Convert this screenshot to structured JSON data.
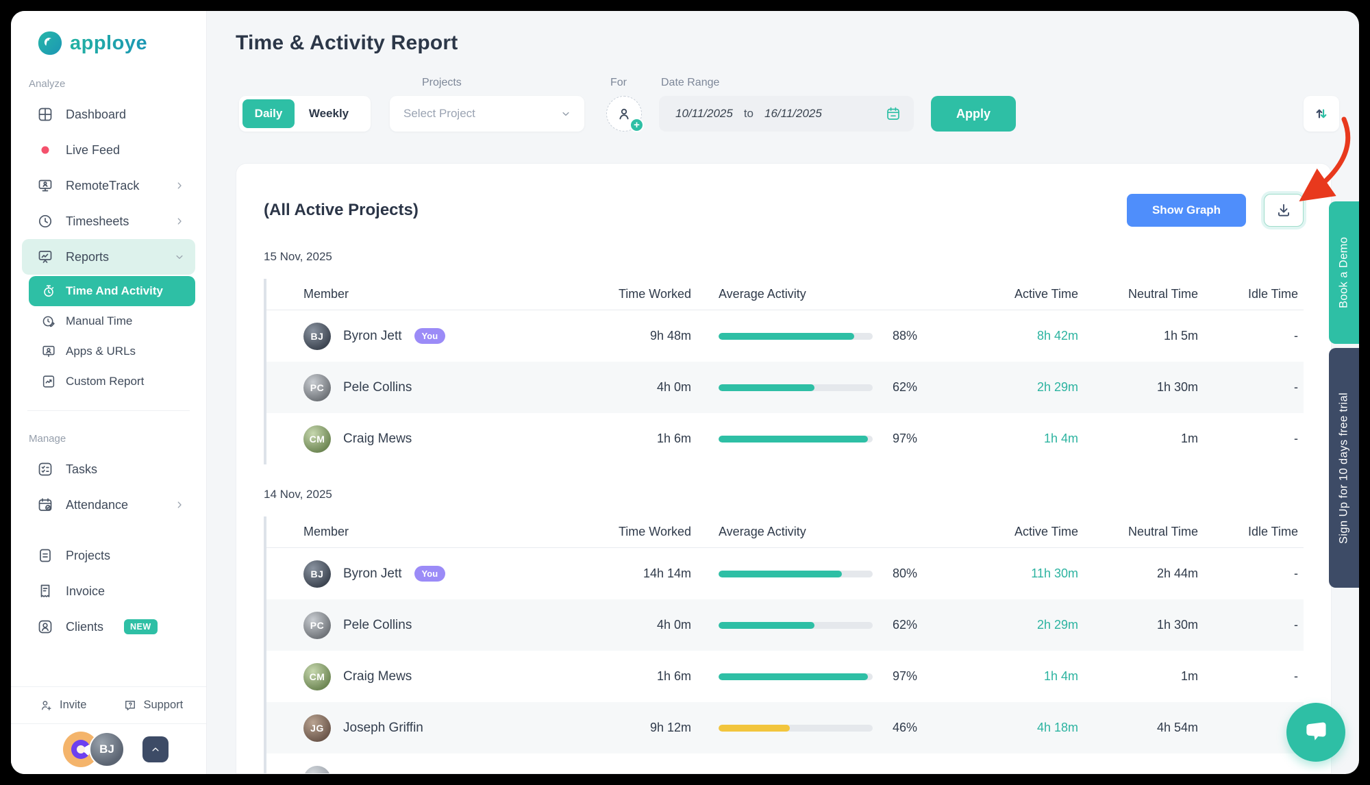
{
  "colors": {
    "teal": "#2ebfa5",
    "blue": "#4f8efb",
    "yellow": "#f2c53d",
    "purple": "#9b8bf7",
    "navy_tab": "#3d4b66",
    "red_arrow": "#e8391d",
    "live_dot": "#f4516c"
  },
  "sidebar": {
    "logo_text": "apploye",
    "analyze_label": "Analyze",
    "manage_label": "Manage",
    "analyze_items": [
      {
        "label": "Dashboard",
        "icon": "dashboard"
      },
      {
        "label": "Live Feed",
        "icon": "live"
      },
      {
        "label": "RemoteTrack",
        "icon": "remotetrack",
        "chevron": "right"
      },
      {
        "label": "Timesheets",
        "icon": "timesheets",
        "chevron": "right"
      },
      {
        "label": "Reports",
        "icon": "reports",
        "chevron": "down",
        "highlight": true
      }
    ],
    "reports_subitems": [
      {
        "label": "Time And Activity",
        "icon": "stopwatch",
        "active": true
      },
      {
        "label": "Manual Time",
        "icon": "manualtime"
      },
      {
        "label": "Apps & URLs",
        "icon": "apps"
      },
      {
        "label": "Custom Report",
        "icon": "customreport"
      }
    ],
    "manage_items": [
      {
        "label": "Tasks",
        "icon": "tasks"
      },
      {
        "label": "Attendance",
        "icon": "attendance",
        "chevron": "right"
      },
      {
        "label": "Projects",
        "icon": "projects",
        "gap_before": true
      },
      {
        "label": "Invoice",
        "icon": "invoice"
      },
      {
        "label": "Clients",
        "icon": "clients",
        "badge": "NEW"
      }
    ],
    "footer": {
      "invite": "Invite",
      "support": "Support"
    }
  },
  "header": {
    "title": "Time & Activity Report",
    "toggle": {
      "daily": "Daily",
      "weekly": "Weekly",
      "active": "Daily"
    },
    "projects_label": "Projects",
    "project_placeholder": "Select Project",
    "for_label": "For",
    "date_range_label": "Date Range",
    "date_from": "10/11/2025",
    "date_to_word": "to",
    "date_to": "16/11/2025",
    "apply_label": "Apply"
  },
  "report": {
    "scope_title": "(All Active Projects)",
    "show_graph_label": "Show Graph",
    "you_badge": "You",
    "columns": [
      "Member",
      "Time Worked",
      "Average Activity",
      "Active Time",
      "Neutral Time",
      "Idle Time"
    ],
    "groups": [
      {
        "date": "15 Nov, 2025",
        "rows": [
          {
            "name": "Byron Jett",
            "you": true,
            "time_worked": "9h 48m",
            "activity_pct": 88,
            "bar": "teal",
            "active_time": "8h 42m",
            "neutral_time": "1h 5m",
            "idle_time": "-"
          },
          {
            "name": "Pele Collins",
            "time_worked": "4h 0m",
            "activity_pct": 62,
            "bar": "teal",
            "active_time": "2h 29m",
            "neutral_time": "1h 30m",
            "idle_time": "-"
          },
          {
            "name": "Craig Mews",
            "time_worked": "1h 6m",
            "activity_pct": 97,
            "bar": "teal",
            "active_time": "1h 4m",
            "neutral_time": "1m",
            "idle_time": "-"
          }
        ],
        "partial_next_row": false
      },
      {
        "date": "14 Nov, 2025",
        "rows": [
          {
            "name": "Byron Jett",
            "you": true,
            "time_worked": "14h 14m",
            "activity_pct": 80,
            "bar": "teal",
            "active_time": "11h 30m",
            "neutral_time": "2h 44m",
            "idle_time": "-"
          },
          {
            "name": "Pele Collins",
            "time_worked": "4h 0m",
            "activity_pct": 62,
            "bar": "teal",
            "active_time": "2h 29m",
            "neutral_time": "1h 30m",
            "idle_time": "-"
          },
          {
            "name": "Craig Mews",
            "time_worked": "1h 6m",
            "activity_pct": 97,
            "bar": "teal",
            "active_time": "1h 4m",
            "neutral_time": "1m",
            "idle_time": "-"
          },
          {
            "name": "Joseph Griffin",
            "time_worked": "9h 12m",
            "activity_pct": 46,
            "bar": "yellow",
            "active_time": "4h 18m",
            "neutral_time": "4h 54m",
            "idle_time": "-"
          }
        ],
        "partial_next_row": true
      }
    ]
  },
  "side_tabs": {
    "book_demo": "Book a Demo",
    "free_trial": "Sign Up for 10 days free trial"
  }
}
